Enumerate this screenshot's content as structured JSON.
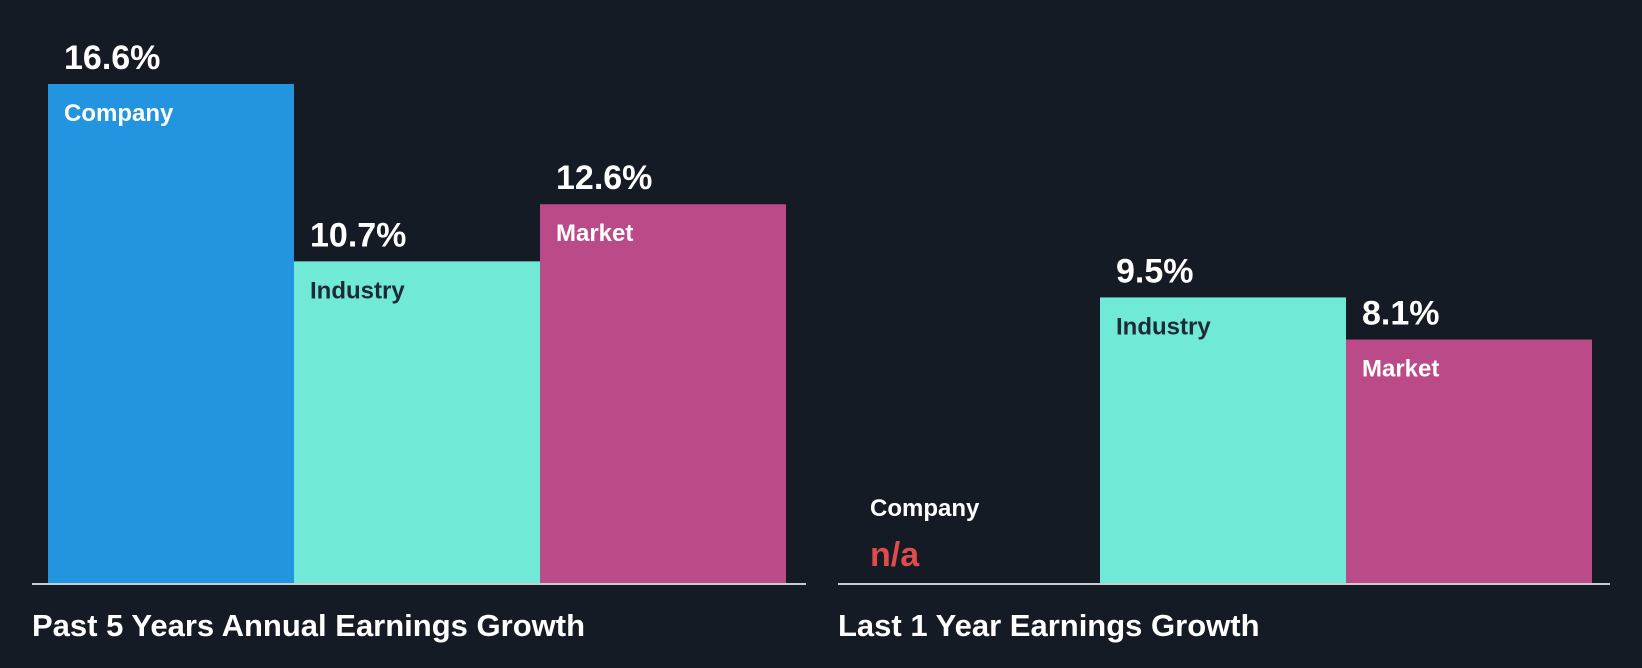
{
  "colors": {
    "background": "#151b24",
    "company": "#2394e0",
    "industry": "#70e9d6",
    "market": "#bb4a88",
    "baseline": "#c8ccd2",
    "na_text": "#e04b4b",
    "label_light": "#ffffff",
    "label_dark": "#1e2a36"
  },
  "chart_data": [
    {
      "type": "bar",
      "title": "Past 5 Years Annual Earnings Growth",
      "categories": [
        "Company",
        "Industry",
        "Market"
      ],
      "values": [
        16.6,
        10.7,
        12.6
      ],
      "value_labels": [
        "16.6%",
        "10.7%",
        "12.6%"
      ],
      "ylim": [
        0,
        16.6
      ]
    },
    {
      "type": "bar",
      "title": "Last 1 Year Earnings Growth",
      "categories": [
        "Company",
        "Industry",
        "Market"
      ],
      "values": [
        null,
        9.5,
        8.1
      ],
      "value_labels": [
        "n/a",
        "9.5%",
        "8.1%"
      ],
      "ylim": [
        0,
        16.6
      ]
    }
  ]
}
